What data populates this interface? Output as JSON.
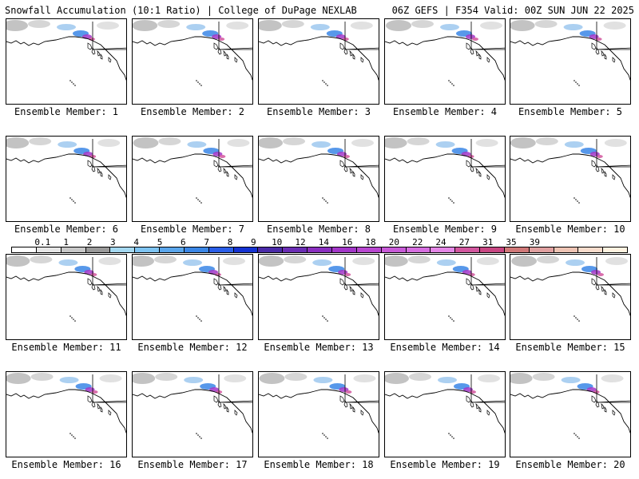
{
  "header": {
    "title_left": "Snowfall Accumulation (10:1 Ratio) | College of DuPage NEXLAB",
    "title_right": "06Z GEFS | F354 Valid: 00Z SUN JUN 22 2025"
  },
  "colorbar": {
    "labels": [
      "0.1",
      "1",
      "2",
      "3",
      "4",
      "5",
      "6",
      "7",
      "8",
      "9",
      "10",
      "12",
      "14",
      "16",
      "18",
      "20",
      "22",
      "24",
      "27",
      "31",
      "35",
      "39"
    ],
    "colors": [
      "#ffffff",
      "#e6e6e6",
      "#c8c8c8",
      "#9a9a9a",
      "#a4d8f0",
      "#7ec4f2",
      "#5aa6ec",
      "#3a86e6",
      "#2a5ee8",
      "#1432d2",
      "#4a2aa8",
      "#6a2cb4",
      "#8a2ec0",
      "#a236c8",
      "#b846d0",
      "#c85ad8",
      "#d66ee0",
      "#e486e6",
      "#d2569e",
      "#c84682",
      "#d07878",
      "#e0a0a0",
      "#eec4b4",
      "#f8dccc",
      "#fff2e0"
    ]
  },
  "panels": [
    {
      "label": "Ensemble Member: 1"
    },
    {
      "label": "Ensemble Member: 2"
    },
    {
      "label": "Ensemble Member: 3"
    },
    {
      "label": "Ensemble Member: 4"
    },
    {
      "label": "Ensemble Member: 5"
    },
    {
      "label": "Ensemble Member: 6"
    },
    {
      "label": "Ensemble Member: 7"
    },
    {
      "label": "Ensemble Member: 8"
    },
    {
      "label": "Ensemble Member: 9"
    },
    {
      "label": "Ensemble Member: 10"
    },
    {
      "label": "Ensemble Member: 11"
    },
    {
      "label": "Ensemble Member: 12"
    },
    {
      "label": "Ensemble Member: 13"
    },
    {
      "label": "Ensemble Member: 14"
    },
    {
      "label": "Ensemble Member: 15"
    },
    {
      "label": "Ensemble Member: 16"
    },
    {
      "label": "Ensemble Member: 17"
    },
    {
      "label": "Ensemble Member: 18"
    },
    {
      "label": "Ensemble Member: 19"
    },
    {
      "label": "Ensemble Member: 20"
    }
  ]
}
